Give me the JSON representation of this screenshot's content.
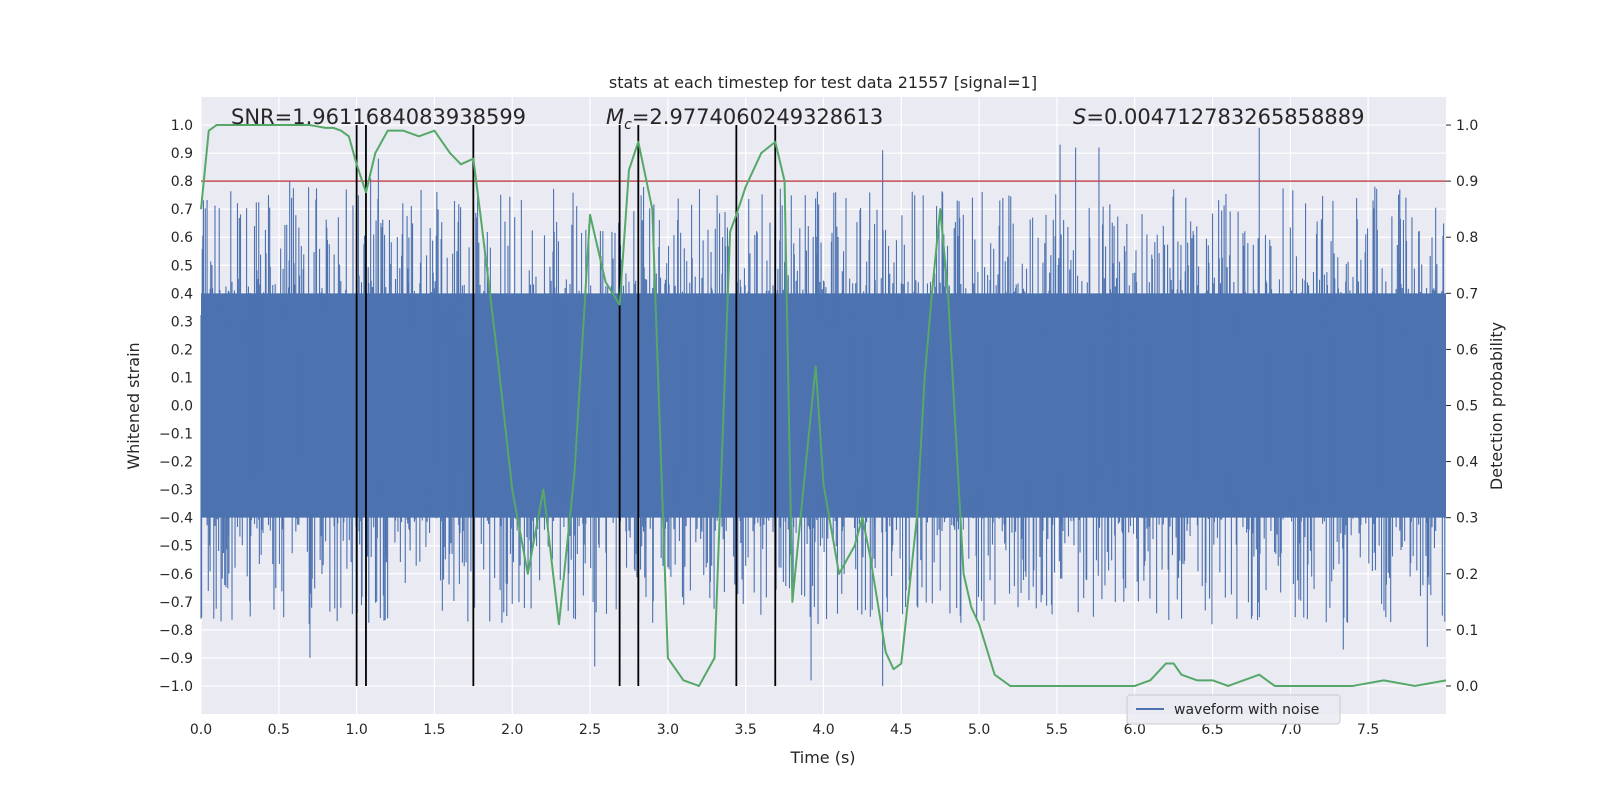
{
  "chart_data": {
    "type": "line",
    "title": "stats at each timestep for test data 21557 [signal=1]",
    "xlabel": "Time (s)",
    "ylabel": "Whitened strain",
    "y2label": "Detection probability",
    "xlim": [
      0.0,
      8.0
    ],
    "ylim": [
      -1.1,
      1.1
    ],
    "y2lim": [
      -0.05,
      1.05
    ],
    "xticks": [
      0.0,
      0.5,
      1.0,
      1.5,
      2.0,
      2.5,
      3.0,
      3.5,
      4.0,
      4.5,
      5.0,
      5.5,
      6.0,
      6.5,
      7.0,
      7.5
    ],
    "xtick_labels": [
      "0.0",
      "0.5",
      "1.0",
      "1.5",
      "2.0",
      "2.5",
      "3.0",
      "3.5",
      "4.0",
      "4.5",
      "5.0",
      "5.5",
      "6.0",
      "6.5",
      "7.0",
      "7.5"
    ],
    "yticks": [
      -1.0,
      -0.9,
      -0.8,
      -0.7,
      -0.6,
      -0.5,
      -0.4,
      -0.3,
      -0.2,
      -0.1,
      0.0,
      0.1,
      0.2,
      0.3,
      0.4,
      0.5,
      0.6,
      0.7,
      0.8,
      0.9,
      1.0
    ],
    "ytick_labels": [
      "−1.0",
      "−0.9",
      "−0.8",
      "−0.7",
      "−0.6",
      "−0.5",
      "−0.4",
      "−0.3",
      "−0.2",
      "−0.1",
      "0.0",
      "0.1",
      "0.2",
      "0.3",
      "0.4",
      "0.5",
      "0.6",
      "0.7",
      "0.8",
      "0.9",
      "1.0"
    ],
    "y2ticks": [
      0.0,
      0.1,
      0.2,
      0.3,
      0.4,
      0.5,
      0.6,
      0.7,
      0.8,
      0.9,
      1.0
    ],
    "y2tick_labels": [
      "0.0",
      "0.1",
      "0.2",
      "0.3",
      "0.4",
      "0.5",
      "0.6",
      "0.7",
      "0.8",
      "0.9",
      "1.0"
    ],
    "annotations": {
      "snr": "SNR=1.9611684083938599",
      "mc_symbol": "M",
      "mc_sub": "c",
      "mc_value": "=2.9774060249328613",
      "s_symbol": "S",
      "s_value": "=0.004712783265858889"
    },
    "legend": {
      "label": "waveform with noise",
      "location": "lower-right"
    },
    "threshold": {
      "value": 0.8,
      "color": "#c44e52"
    },
    "event_lines": [
      1.0,
      1.06,
      1.75,
      2.69,
      2.81,
      3.44,
      3.69
    ],
    "noise_series": {
      "name": "waveform with noise",
      "color": "#4c72b0",
      "samples": 2048,
      "dense_amplitude": 0.4,
      "typical_peak_range": [
        0.45,
        0.78
      ],
      "large_spikes": [
        {
          "x": 0.57,
          "y": 0.8
        },
        {
          "x": 1.09,
          "y": 0.81
        },
        {
          "x": 1.14,
          "y": 0.88
        },
        {
          "x": 4.38,
          "y": 0.91
        },
        {
          "x": 4.38,
          "y": -1.0
        },
        {
          "x": 3.92,
          "y": -0.98
        },
        {
          "x": 5.52,
          "y": 0.93
        },
        {
          "x": 5.62,
          "y": 0.92
        },
        {
          "x": 5.77,
          "y": 0.92
        },
        {
          "x": 6.8,
          "y": 0.99
        },
        {
          "x": 0.7,
          "y": -0.9
        },
        {
          "x": 2.53,
          "y": -0.93
        },
        {
          "x": 7.34,
          "y": -0.87
        },
        {
          "x": 7.88,
          "y": -0.86
        }
      ],
      "dense_gap": [
        3.65,
        3.66
      ]
    },
    "probability_series": {
      "name": "detection probability",
      "color": "#55a868",
      "x": [
        0.0,
        0.05,
        0.1,
        0.2,
        0.3,
        0.5,
        0.7,
        0.8,
        0.85,
        0.9,
        0.95,
        1.0,
        1.06,
        1.12,
        1.2,
        1.3,
        1.4,
        1.5,
        1.6,
        1.67,
        1.75,
        1.8,
        1.9,
        2.0,
        2.1,
        2.2,
        2.3,
        2.4,
        2.5,
        2.6,
        2.69,
        2.75,
        2.81,
        2.9,
        3.0,
        3.1,
        3.2,
        3.3,
        3.4,
        3.44,
        3.5,
        3.6,
        3.69,
        3.75,
        3.8,
        3.87,
        3.95,
        4.0,
        4.1,
        4.2,
        4.25,
        4.3,
        4.4,
        4.45,
        4.5,
        4.6,
        4.65,
        4.7,
        4.75,
        4.8,
        4.9,
        4.95,
        5.0,
        5.1,
        5.2,
        5.4,
        5.6,
        5.8,
        6.0,
        6.1,
        6.2,
        6.25,
        6.3,
        6.4,
        6.5,
        6.6,
        6.7,
        6.8,
        6.9,
        7.0,
        7.2,
        7.4,
        7.6,
        7.8,
        8.0
      ],
      "y": [
        0.85,
        0.99,
        1.0,
        1.0,
        1.0,
        1.0,
        1.0,
        0.995,
        0.995,
        0.99,
        0.98,
        0.93,
        0.88,
        0.95,
        0.99,
        0.99,
        0.98,
        0.99,
        0.95,
        0.93,
        0.94,
        0.83,
        0.6,
        0.35,
        0.2,
        0.35,
        0.11,
        0.38,
        0.84,
        0.72,
        0.68,
        0.92,
        0.97,
        0.85,
        0.05,
        0.01,
        0.0,
        0.05,
        0.81,
        0.84,
        0.89,
        0.95,
        0.97,
        0.9,
        0.15,
        0.35,
        0.57,
        0.36,
        0.2,
        0.25,
        0.3,
        0.23,
        0.06,
        0.03,
        0.04,
        0.3,
        0.55,
        0.71,
        0.85,
        0.7,
        0.2,
        0.14,
        0.11,
        0.02,
        0.0,
        0.0,
        0.0,
        0.0,
        0.0,
        0.01,
        0.04,
        0.04,
        0.02,
        0.01,
        0.01,
        0.0,
        0.01,
        0.02,
        0.0,
        0.0,
        0.0,
        0.0,
        0.01,
        0.0,
        0.01
      ]
    }
  }
}
